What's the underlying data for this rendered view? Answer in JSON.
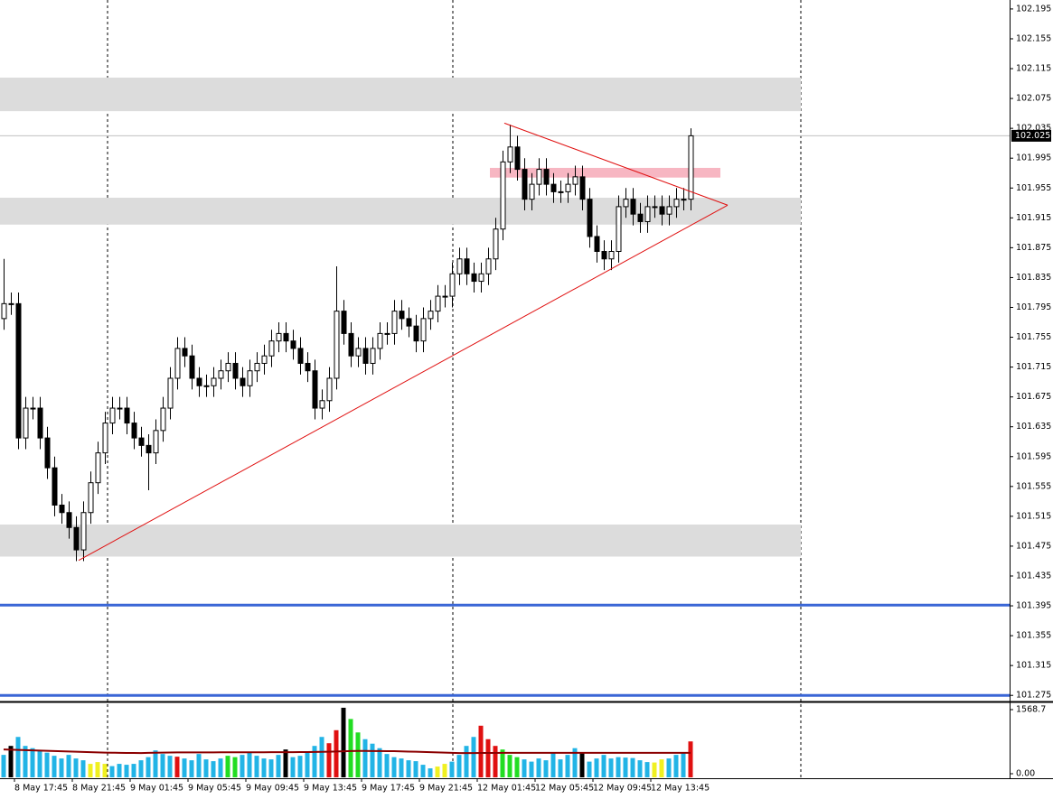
{
  "chart_data": {
    "type": "candlestick",
    "categories": [
      null,
      null,
      "8 May 17:45",
      null,
      null,
      null,
      null,
      null,
      null,
      null,
      "8 May 21:45",
      null,
      null,
      null,
      null,
      null,
      null,
      null,
      "9 May 01:45",
      null,
      null,
      null,
      null,
      null,
      null,
      null,
      "9 May 05:45",
      null,
      null,
      null,
      null,
      null,
      null,
      null,
      "9 May 09:45",
      null,
      null,
      null,
      null,
      null,
      null,
      null,
      "9 May 13:45",
      null,
      null,
      null,
      null,
      null,
      null,
      null,
      "9 May 17:45",
      null,
      null,
      null,
      null,
      null,
      null,
      null,
      "9 May 21:45",
      null,
      null,
      null,
      null,
      null,
      null,
      null,
      "12 May 01:45",
      null,
      null,
      null,
      null,
      null,
      null,
      null,
      "12 May 05:45",
      null,
      null,
      null,
      null,
      null,
      null,
      null,
      "12 May 09:45",
      null,
      null,
      null,
      null,
      null,
      null,
      null,
      "12 May 13:45",
      null,
      null,
      null,
      null,
      null
    ],
    "open": [
      101.78,
      101.8,
      101.8,
      101.62,
      101.66,
      101.66,
      101.62,
      101.58,
      101.53,
      101.52,
      101.5,
      101.47,
      101.52,
      101.56,
      101.6,
      101.64,
      101.66,
      101.66,
      101.64,
      101.62,
      101.61,
      101.6,
      101.63,
      101.66,
      101.7,
      101.74,
      101.73,
      101.7,
      101.69,
      101.69,
      101.7,
      101.71,
      101.72,
      101.7,
      101.69,
      101.71,
      101.72,
      101.73,
      101.75,
      101.76,
      101.75,
      101.74,
      101.72,
      101.71,
      101.66,
      101.67,
      101.7,
      101.79,
      101.76,
      101.73,
      101.74,
      101.72,
      101.74,
      101.76,
      101.76,
      101.79,
      101.78,
      101.77,
      101.75,
      101.78,
      101.79,
      101.81,
      101.81,
      101.84,
      101.86,
      101.84,
      101.83,
      101.84,
      101.86,
      101.9,
      101.99,
      102.01,
      101.98,
      101.94,
      101.96,
      101.98,
      101.96,
      101.95,
      101.95,
      101.96,
      101.97,
      101.94,
      101.89,
      101.87,
      101.86,
      101.87,
      101.93,
      101.94,
      101.92,
      101.91,
      101.93,
      101.93,
      101.92,
      101.93,
      101.94,
      101.94
    ],
    "high": [
      101.86,
      101.815,
      101.815,
      101.675,
      101.675,
      101.675,
      101.635,
      101.595,
      101.545,
      101.535,
      101.515,
      101.535,
      101.575,
      101.615,
      101.655,
      101.675,
      101.675,
      101.675,
      101.655,
      101.635,
      101.625,
      101.645,
      101.675,
      101.715,
      101.755,
      101.755,
      101.745,
      101.715,
      101.705,
      101.715,
      101.725,
      101.735,
      101.735,
      101.715,
      101.725,
      101.735,
      101.745,
      101.765,
      101.775,
      101.775,
      101.765,
      101.755,
      101.735,
      101.725,
      101.685,
      101.715,
      101.85,
      101.805,
      101.775,
      101.755,
      101.755,
      101.755,
      101.775,
      101.775,
      101.805,
      101.805,
      101.795,
      101.785,
      101.795,
      101.805,
      101.825,
      101.825,
      101.855,
      101.875,
      101.875,
      101.855,
      101.855,
      101.875,
      101.915,
      102.005,
      102.04,
      102.025,
      101.995,
      101.975,
      101.995,
      101.995,
      101.975,
      101.965,
      101.975,
      101.985,
      101.985,
      101.955,
      101.905,
      101.885,
      101.885,
      101.945,
      101.955,
      101.955,
      101.935,
      101.945,
      101.945,
      101.945,
      101.945,
      101.955,
      101.955,
      102.035
    ],
    "low": [
      101.765,
      101.785,
      101.605,
      101.605,
      101.645,
      101.605,
      101.565,
      101.515,
      101.505,
      101.485,
      101.455,
      101.455,
      101.505,
      101.545,
      101.585,
      101.625,
      101.645,
      101.625,
      101.605,
      101.595,
      101.55,
      101.585,
      101.615,
      101.645,
      101.685,
      101.715,
      101.685,
      101.675,
      101.675,
      101.675,
      101.685,
      101.695,
      101.685,
      101.675,
      101.675,
      101.695,
      101.705,
      101.715,
      101.735,
      101.735,
      101.725,
      101.705,
      101.695,
      101.645,
      101.645,
      101.655,
      101.685,
      101.745,
      101.715,
      101.715,
      101.705,
      101.705,
      101.725,
      101.745,
      101.745,
      101.765,
      101.755,
      101.735,
      101.735,
      101.765,
      101.775,
      101.795,
      101.795,
      101.825,
      101.825,
      101.815,
      101.815,
      101.825,
      101.845,
      101.885,
      101.975,
      101.965,
      101.925,
      101.925,
      101.945,
      101.945,
      101.935,
      101.935,
      101.935,
      101.945,
      101.925,
      101.875,
      101.855,
      101.845,
      101.845,
      101.855,
      101.915,
      101.905,
      101.895,
      101.895,
      101.915,
      101.905,
      101.905,
      101.915,
      101.925,
      101.925
    ],
    "close": [
      101.8,
      101.8,
      101.62,
      101.66,
      101.66,
      101.62,
      101.58,
      101.53,
      101.52,
      101.5,
      101.47,
      101.52,
      101.56,
      101.6,
      101.64,
      101.66,
      101.66,
      101.64,
      101.62,
      101.61,
      101.6,
      101.63,
      101.66,
      101.7,
      101.74,
      101.73,
      101.7,
      101.69,
      101.69,
      101.7,
      101.71,
      101.72,
      101.7,
      101.69,
      101.71,
      101.72,
      101.73,
      101.75,
      101.76,
      101.75,
      101.74,
      101.72,
      101.71,
      101.66,
      101.67,
      101.7,
      101.79,
      101.76,
      101.73,
      101.74,
      101.72,
      101.74,
      101.76,
      101.76,
      101.79,
      101.78,
      101.77,
      101.75,
      101.78,
      101.79,
      101.81,
      101.81,
      101.84,
      101.86,
      101.84,
      101.83,
      101.84,
      101.86,
      101.9,
      101.99,
      102.01,
      101.98,
      101.94,
      101.96,
      101.98,
      101.96,
      101.95,
      101.95,
      101.96,
      101.97,
      101.94,
      101.89,
      101.87,
      101.86,
      101.87,
      101.93,
      101.94,
      101.92,
      101.91,
      101.93,
      101.93,
      101.92,
      101.93,
      101.94,
      101.94,
      102.025
    ],
    "up_color": "#ffffff",
    "down_color": "#000000",
    "outline_color": "#000000",
    "ylim": [
      101.268,
      102.207
    ],
    "yticks": [
      102.195,
      102.155,
      102.115,
      102.075,
      102.035,
      101.995,
      101.955,
      101.915,
      101.875,
      101.835,
      101.795,
      101.755,
      101.715,
      101.675,
      101.635,
      101.595,
      101.555,
      101.515,
      101.475,
      101.435,
      101.395,
      101.355,
      101.315,
      101.275
    ],
    "current_price": 102.025,
    "zones": [
      {
        "y": [
          102.058,
          102.103
        ],
        "x": [
          -0.5,
          110.25
        ],
        "color": "#dcdcdc"
      },
      {
        "y": [
          101.906,
          101.942
        ],
        "x": [
          -0.5,
          110.25
        ],
        "color": "#dcdcdc"
      },
      {
        "y": [
          101.461,
          101.504
        ],
        "x": [
          -0.5,
          110.25
        ],
        "color": "#dcdcdc"
      },
      {
        "y": [
          101.969,
          101.982
        ],
        "x": [
          67.25,
          99.125
        ],
        "color": "#f7b6c2"
      }
    ],
    "hlines": [
      {
        "value": 101.396,
        "color": "#3a66d6"
      },
      {
        "value": 101.275,
        "color": "#3a66d6"
      }
    ],
    "trendlines": [
      {
        "x": [
          10.375,
          100.125
        ],
        "y": [
          101.456,
          101.932
        ],
        "color": "#e01010"
      },
      {
        "x": [
          69.25,
          100.125
        ],
        "y": [
          102.042,
          101.932
        ],
        "color": "#e01010"
      }
    ],
    "volume": {
      "values": [
        500,
        700,
        900,
        700,
        650,
        600,
        550,
        480,
        420,
        500,
        420,
        380,
        300,
        340,
        300,
        250,
        300,
        280,
        300,
        380,
        450,
        600,
        520,
        480,
        460,
        420,
        380,
        520,
        400,
        360,
        420,
        480,
        450,
        500,
        560,
        480,
        420,
        400,
        500,
        620,
        450,
        480,
        560,
        700,
        900,
        760,
        1050,
        1550,
        1300,
        1000,
        850,
        750,
        650,
        520,
        450,
        420,
        380,
        360,
        280,
        200,
        240,
        300,
        350,
        500,
        700,
        900,
        1150,
        850,
        700,
        620,
        500,
        450,
        400,
        350,
        420,
        380,
        560,
        400,
        500,
        650,
        550,
        350,
        420,
        500,
        420,
        450,
        440,
        430,
        380,
        340,
        330,
        400,
        420,
        500,
        550,
        800
      ],
      "colors": [
        "#22b4e6",
        "#000000",
        "#22b4e6",
        "#22b4e6",
        "#22b4e6",
        "#22b4e6",
        "#22b4e6",
        "#22b4e6",
        "#22b4e6",
        "#22b4e6",
        "#22b4e6",
        "#22b4e6",
        "#f0f020",
        "#f0f020",
        "#f0f020",
        "#22b4e6",
        "#22b4e6",
        "#22b4e6",
        "#22b4e6",
        "#22b4e6",
        "#22b4e6",
        "#22b4e6",
        "#22b4e6",
        "#22b4e6",
        "#e01010",
        "#22b4e6",
        "#22b4e6",
        "#22b4e6",
        "#22b4e6",
        "#22b4e6",
        "#22b4e6",
        "#22dd22",
        "#22dd22",
        "#22b4e6",
        "#22b4e6",
        "#22b4e6",
        "#22b4e6",
        "#22b4e6",
        "#22b4e6",
        "#000000",
        "#22b4e6",
        "#22b4e6",
        "#22b4e6",
        "#22b4e6",
        "#22b4e6",
        "#e01010",
        "#e01010",
        "#000000",
        "#22dd22",
        "#22dd22",
        "#22b4e6",
        "#22b4e6",
        "#22b4e6",
        "#22b4e6",
        "#22b4e6",
        "#22b4e6",
        "#22b4e6",
        "#22b4e6",
        "#22b4e6",
        "#22b4e6",
        "#f0f020",
        "#f0f020",
        "#22b4e6",
        "#22b4e6",
        "#22b4e6",
        "#22b4e6",
        "#e01010",
        "#e01010",
        "#e01010",
        "#22dd22",
        "#22dd22",
        "#22dd22",
        "#22b4e6",
        "#22b4e6",
        "#22b4e6",
        "#22b4e6",
        "#22b4e6",
        "#22b4e6",
        "#22b4e6",
        "#22b4e6",
        "#000000",
        "#22b4e6",
        "#22b4e6",
        "#22b4e6",
        "#22b4e6",
        "#22b4e6",
        "#22b4e6",
        "#22b4e6",
        "#22b4e6",
        "#22b4e6",
        "#f0f020",
        "#f0f020",
        "#22b4e6",
        "#22b4e6",
        "#22b4e6",
        "#e01010"
      ],
      "ma": [
        620,
        615,
        610,
        605,
        600,
        595,
        590,
        585,
        580,
        575,
        570,
        565,
        560,
        555,
        550,
        548,
        546,
        544,
        542,
        540,
        545,
        548,
        550,
        552,
        555,
        556,
        556,
        556,
        556,
        556,
        557,
        557,
        558,
        558,
        558,
        559,
        559,
        560,
        560,
        560,
        561,
        562,
        563,
        565,
        568,
        570,
        575,
        580,
        585,
        588,
        588,
        587,
        586,
        584,
        582,
        578,
        574,
        570,
        565,
        560,
        555,
        550,
        545,
        540,
        540,
        541,
        542,
        543,
        544,
        545,
        545,
        545,
        545,
        545,
        545,
        545,
        545,
        545,
        545,
        545,
        545,
        545,
        545,
        545,
        545,
        545,
        545,
        545,
        545,
        545,
        545,
        545,
        545,
        545,
        545,
        545
      ],
      "ma_color": "#8b0000",
      "ylim": [
        0,
        1568.7
      ],
      "yticks": [
        1568.7,
        {
          "value": 0,
          "label": "0.00"
        }
      ]
    }
  }
}
